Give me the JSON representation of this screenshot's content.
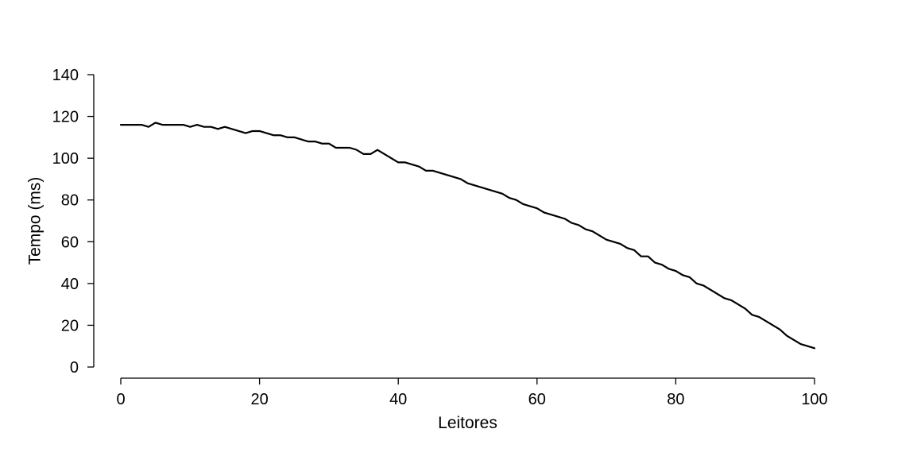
{
  "chart_data": {
    "type": "line",
    "xlabel": "Leitores",
    "ylabel": "Tempo (ms)",
    "xlim": [
      0,
      100
    ],
    "ylim": [
      0,
      140
    ],
    "x_ticks": [
      0,
      20,
      40,
      60,
      80,
      100
    ],
    "y_ticks": [
      0,
      20,
      40,
      60,
      80,
      100,
      120,
      140
    ],
    "x_tick_labels": [
      "0",
      "20",
      "40",
      "60",
      "80",
      "100"
    ],
    "y_tick_labels": [
      "0",
      "20",
      "40",
      "60",
      "80",
      "100",
      "120",
      "140"
    ],
    "grid": false,
    "series": [
      {
        "color": "#000000",
        "x": [
          0,
          1,
          2,
          3,
          4,
          5,
          6,
          7,
          8,
          9,
          10,
          11,
          12,
          13,
          14,
          15,
          16,
          17,
          18,
          19,
          20,
          21,
          22,
          23,
          24,
          25,
          26,
          27,
          28,
          29,
          30,
          31,
          32,
          33,
          34,
          35,
          36,
          37,
          38,
          39,
          40,
          41,
          42,
          43,
          44,
          45,
          46,
          47,
          48,
          49,
          50,
          51,
          52,
          53,
          54,
          55,
          56,
          57,
          58,
          59,
          60,
          61,
          62,
          63,
          64,
          65,
          66,
          67,
          68,
          69,
          70,
          71,
          72,
          73,
          74,
          75,
          76,
          77,
          78,
          79,
          80,
          81,
          82,
          83,
          84,
          85,
          86,
          87,
          88,
          89,
          90,
          91,
          92,
          93,
          94,
          95,
          96,
          97,
          98,
          99,
          100
        ],
        "values": [
          116,
          116,
          116,
          116,
          115,
          117,
          116,
          116,
          116,
          116,
          115,
          116,
          115,
          115,
          114,
          115,
          114,
          113,
          112,
          113,
          113,
          112,
          111,
          111,
          110,
          110,
          109,
          108,
          108,
          107,
          107,
          105,
          105,
          105,
          104,
          102,
          102,
          104,
          102,
          100,
          98,
          98,
          97,
          96,
          94,
          94,
          93,
          92,
          91,
          90,
          88,
          87,
          86,
          85,
          84,
          83,
          81,
          80,
          78,
          77,
          76,
          74,
          73,
          72,
          71,
          69,
          68,
          66,
          65,
          63,
          61,
          60,
          59,
          57,
          56,
          53,
          53,
          50,
          49,
          47,
          46,
          44,
          43,
          40,
          39,
          37,
          35,
          33,
          32,
          30,
          28,
          25,
          24,
          22,
          20,
          18,
          15,
          13,
          11,
          10,
          9
        ]
      }
    ]
  }
}
